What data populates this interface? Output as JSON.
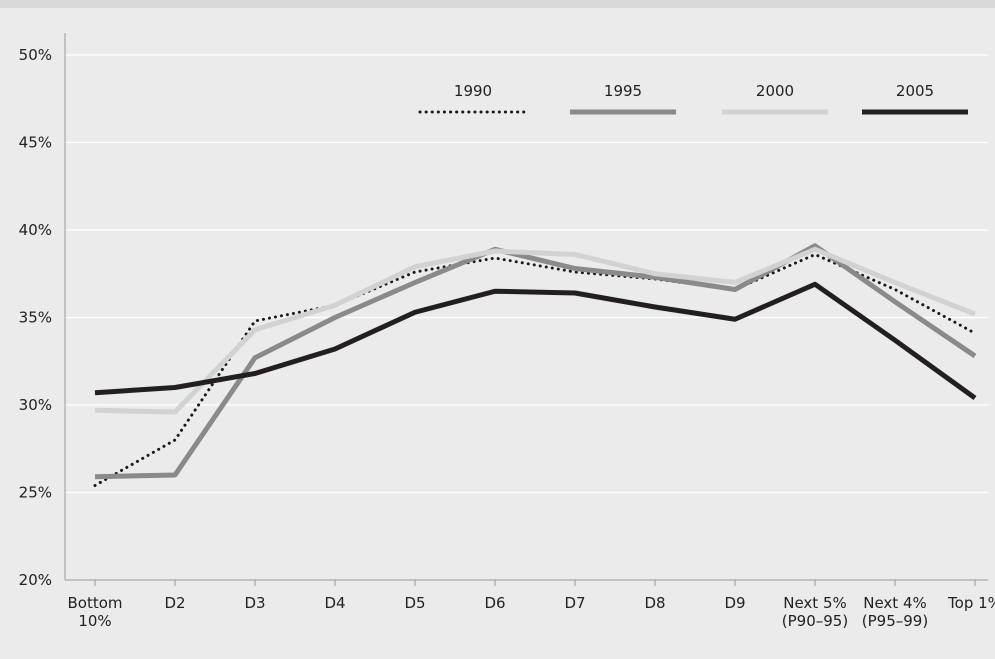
{
  "chart_data": {
    "type": "line",
    "title": "",
    "xlabel": "",
    "ylabel": "",
    "categories": [
      "Bottom\n10%",
      "D2",
      "D3",
      "D4",
      "D5",
      "D6",
      "D7",
      "D8",
      "D9",
      "Next 5%\n(P90–95)",
      "Next 4%\n(P95–99)",
      "Top 1%"
    ],
    "ylim": [
      20,
      50
    ],
    "yticks": [
      "20%",
      "25%",
      "30%",
      "35%",
      "40%",
      "45%",
      "50%"
    ],
    "legend_position": "top-right",
    "grid": true,
    "series": [
      {
        "name": "1990",
        "style": "dotted",
        "color": "#1a1a1a",
        "values": [
          25.4,
          28.0,
          34.8,
          35.7,
          37.6,
          38.4,
          37.6,
          37.2,
          36.6,
          38.6,
          36.6,
          34.1
        ]
      },
      {
        "name": "1995",
        "style": "solid",
        "color": "#8a8a8a",
        "values": [
          25.9,
          26.0,
          32.7,
          35.0,
          37.0,
          38.9,
          37.8,
          37.3,
          36.6,
          39.1,
          35.9,
          32.8
        ]
      },
      {
        "name": "2000",
        "style": "solid",
        "color": "#d2d2d2",
        "values": [
          29.7,
          29.6,
          34.3,
          35.7,
          37.9,
          38.8,
          38.6,
          37.5,
          37.0,
          38.9,
          37.0,
          35.2
        ]
      },
      {
        "name": "2005",
        "style": "solid",
        "color": "#231f20",
        "values": [
          30.7,
          31.0,
          31.8,
          33.2,
          35.3,
          36.5,
          36.4,
          35.6,
          34.9,
          36.9,
          33.7,
          30.4
        ]
      }
    ]
  }
}
